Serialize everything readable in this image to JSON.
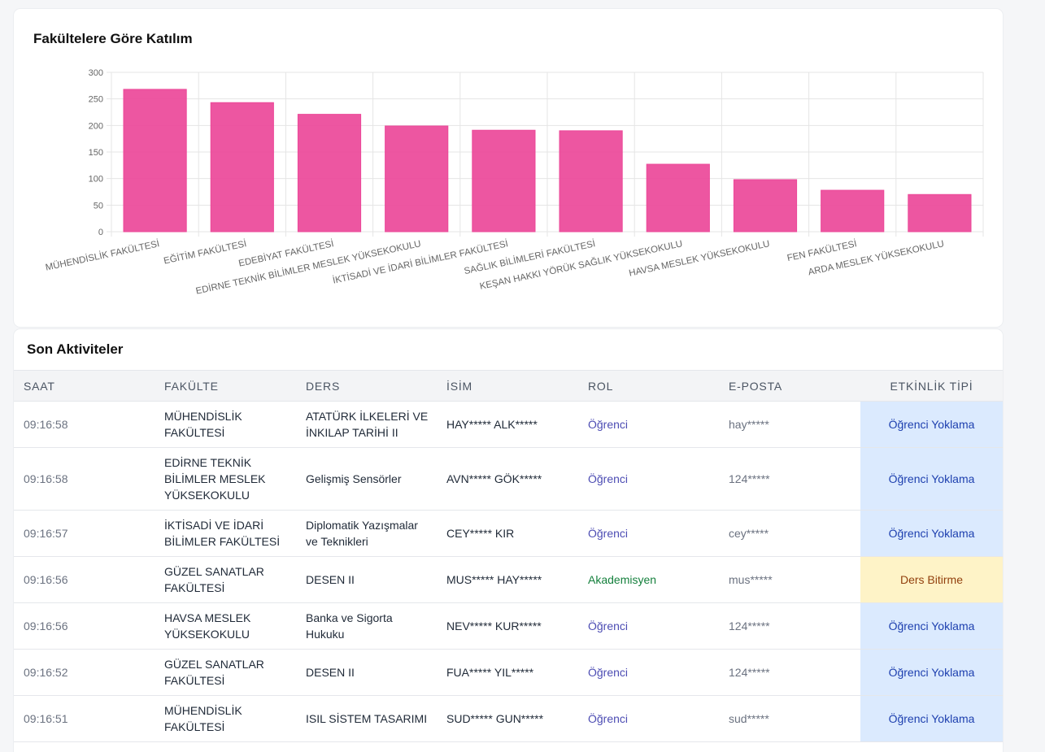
{
  "chart_card": {
    "title": "Fakültelere Göre Katılım"
  },
  "chart_data": {
    "type": "bar",
    "title": "Fakültelere Göre Katılım",
    "categories": [
      "MÜHENDİSLİK FAKÜLTESİ",
      "EĞİTİM FAKÜLTESİ",
      "EDEBİYAT FAKÜLTESİ",
      "EDİRNE TEKNİK BİLİMLER MESLEK YÜKSEKOKULU",
      "İKTİSADİ VE İDARİ BİLİMLER FAKÜLTESİ",
      "SAĞLIK BİLİMLERİ FAKÜLTESİ",
      "KEŞAN HAKKI YÖRÜK SAĞLIK YÜKSEKOKULU",
      "HAVSA MESLEK YÜKSEKOKULU",
      "FEN FAKÜLTESİ",
      "ARDA MESLEK YÜKSEKOKULU"
    ],
    "values": [
      268,
      243,
      221,
      199,
      191,
      190,
      127,
      98,
      78,
      70
    ],
    "yticks": [
      0,
      50,
      100,
      150,
      200,
      250,
      300
    ],
    "ylim": [
      0,
      300
    ],
    "color": "#ec4899",
    "grid": true
  },
  "activities": {
    "title": "Son Aktiviteler",
    "columns": [
      "SAAT",
      "FAKÜLTE",
      "DERS",
      "İSİM",
      "ROL",
      "E-POSTA",
      "ETKİNLİK TİPİ"
    ],
    "rows": [
      {
        "time": "09:16:58",
        "faculty": "MÜHENDİSLİK FAKÜLTESİ",
        "course": "ATATÜRK İLKELERİ VE İNKILAP TARİHİ II",
        "name": "HAY***** ALK*****",
        "role": "Öğrenci",
        "email": "hay*****",
        "type": "Öğrenci Yoklama"
      },
      {
        "time": "09:16:58",
        "faculty": "EDİRNE TEKNİK BİLİMLER MESLEK YÜKSEKOKULU",
        "course": "Gelişmiş Sensörler",
        "name": "AVN***** GÖK*****",
        "role": "Öğrenci",
        "email": "124*****",
        "type": "Öğrenci Yoklama"
      },
      {
        "time": "09:16:57",
        "faculty": "İKTİSADİ VE İDARİ BİLİMLER FAKÜLTESİ",
        "course": "Diplomatik Yazışmalar ve Teknikleri",
        "name": "CEY***** KIR",
        "role": "Öğrenci",
        "email": "cey*****",
        "type": "Öğrenci Yoklama"
      },
      {
        "time": "09:16:56",
        "faculty": "GÜZEL SANATLAR FAKÜLTESİ",
        "course": "DESEN II",
        "name": "MUS***** HAY*****",
        "role": "Akademisyen",
        "email": "mus*****",
        "type": "Ders Bitirme"
      },
      {
        "time": "09:16:56",
        "faculty": "HAVSA MESLEK YÜKSEKOKULU",
        "course": "Banka ve Sigorta Hukuku",
        "name": "NEV***** KUR*****",
        "role": "Öğrenci",
        "email": "124*****",
        "type": "Öğrenci Yoklama"
      },
      {
        "time": "09:16:52",
        "faculty": "GÜZEL SANATLAR FAKÜLTESİ",
        "course": "DESEN II",
        "name": "FUA***** YIL*****",
        "role": "Öğrenci",
        "email": "124*****",
        "type": "Öğrenci Yoklama"
      },
      {
        "time": "09:16:51",
        "faculty": "MÜHENDİSLİK FAKÜLTESİ",
        "course": "ISIL SİSTEM TASARIMI",
        "name": "SUD***** GUN*****",
        "role": "Öğrenci",
        "email": "sud*****",
        "type": "Öğrenci Yoklama"
      }
    ]
  }
}
